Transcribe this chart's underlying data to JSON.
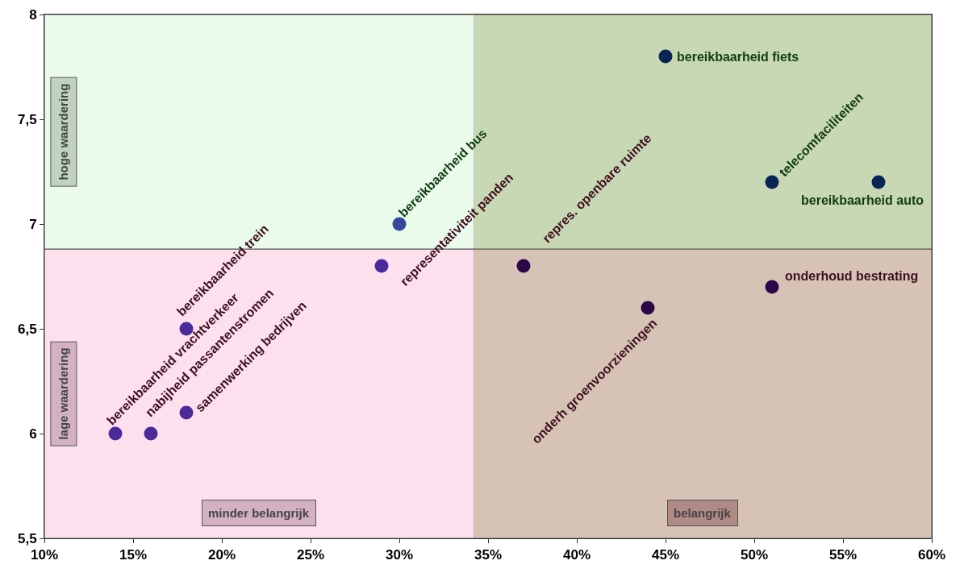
{
  "chart_data": {
    "type": "scatter",
    "x": [
      45,
      51,
      57,
      30,
      29,
      37,
      51,
      44,
      18,
      14,
      16,
      18
    ],
    "values": [
      7.8,
      7.2,
      7.2,
      7.0,
      6.8,
      6.8,
      6.7,
      6.6,
      6.5,
      6.0,
      6.0,
      6.1
    ],
    "colors": [
      "#0a2456",
      "#0a2456",
      "#0a2456",
      "#34499c",
      "#4b2a9a",
      "#2a0848",
      "#2a0848",
      "#2a0848",
      "#4b2a9a",
      "#4b2a9a",
      "#4b2a9a",
      "#4b2a9a"
    ],
    "marker": "circle",
    "annotations": [
      {
        "text": "bereikbaarheid fiets",
        "x": 45,
        "y": 7.8
      },
      {
        "text": "telecomfaciliteiten",
        "x": 51,
        "y": 7.2
      },
      {
        "text": "bereikbaarheid auto",
        "x": 57,
        "y": 7.2
      },
      {
        "text": "bereikbaarheid bus",
        "x": 30,
        "y": 7.0
      },
      {
        "text": "representativiteit panden",
        "x": 29,
        "y": 6.8
      },
      {
        "text": "repres. openbare ruimte",
        "x": 37,
        "y": 6.8
      },
      {
        "text": "onderhoud bestrating",
        "x": 51,
        "y": 6.7
      },
      {
        "text": "onderh groenvoorzieningen",
        "x": 44,
        "y": 6.6
      },
      {
        "text": "bereikbaarheid trein",
        "x": 18,
        "y": 6.5
      },
      {
        "text": "bereikbaarheid vrachtverkeer",
        "x": 14,
        "y": 6.0
      },
      {
        "text": "nabijheid passantenstromen",
        "x": 16,
        "y": 6.0
      },
      {
        "text": "samenwerking bedrijven",
        "x": 18,
        "y": 6.1
      },
      "minder belangrijk"
    ],
    "bands": [
      {
        "axis": "y",
        "from": 6.88,
        "to": 8,
        "label": "hoge waardering",
        "color": "#ebfbeb"
      },
      {
        "axis": "y",
        "from": 5.5,
        "to": 6.88,
        "label": "lage waardering",
        "color": "#fde0ee"
      },
      {
        "axis": "x",
        "from": 34.2,
        "to": 60,
        "label": "belangrijk",
        "color": "#646e14"
      }
    ],
    "xlim": [
      10,
      60
    ],
    "xticks": [
      {
        "value": 10,
        "label": "10%"
      },
      {
        "value": 15,
        "label": "15%"
      },
      {
        "value": 20,
        "label": "20%"
      },
      {
        "value": 25,
        "label": "25%"
      },
      {
        "value": 30,
        "label": "30%"
      },
      {
        "value": 35,
        "label": "35%"
      },
      {
        "value": 40,
        "label": "40%"
      },
      {
        "value": 45,
        "label": "45%"
      },
      {
        "value": 50,
        "label": "50%"
      },
      {
        "value": 55,
        "label": "55%"
      },
      {
        "value": 60,
        "label": "60%"
      }
    ],
    "ylim": [
      5.5,
      8
    ],
    "yticks": [
      {
        "value": 5.5,
        "label": "5,5"
      },
      6,
      {
        "value": 6.5,
        "label": "6,5"
      },
      7,
      {
        "value": 7.5,
        "label": "7,5"
      },
      8
    ],
    "grid": false
  }
}
